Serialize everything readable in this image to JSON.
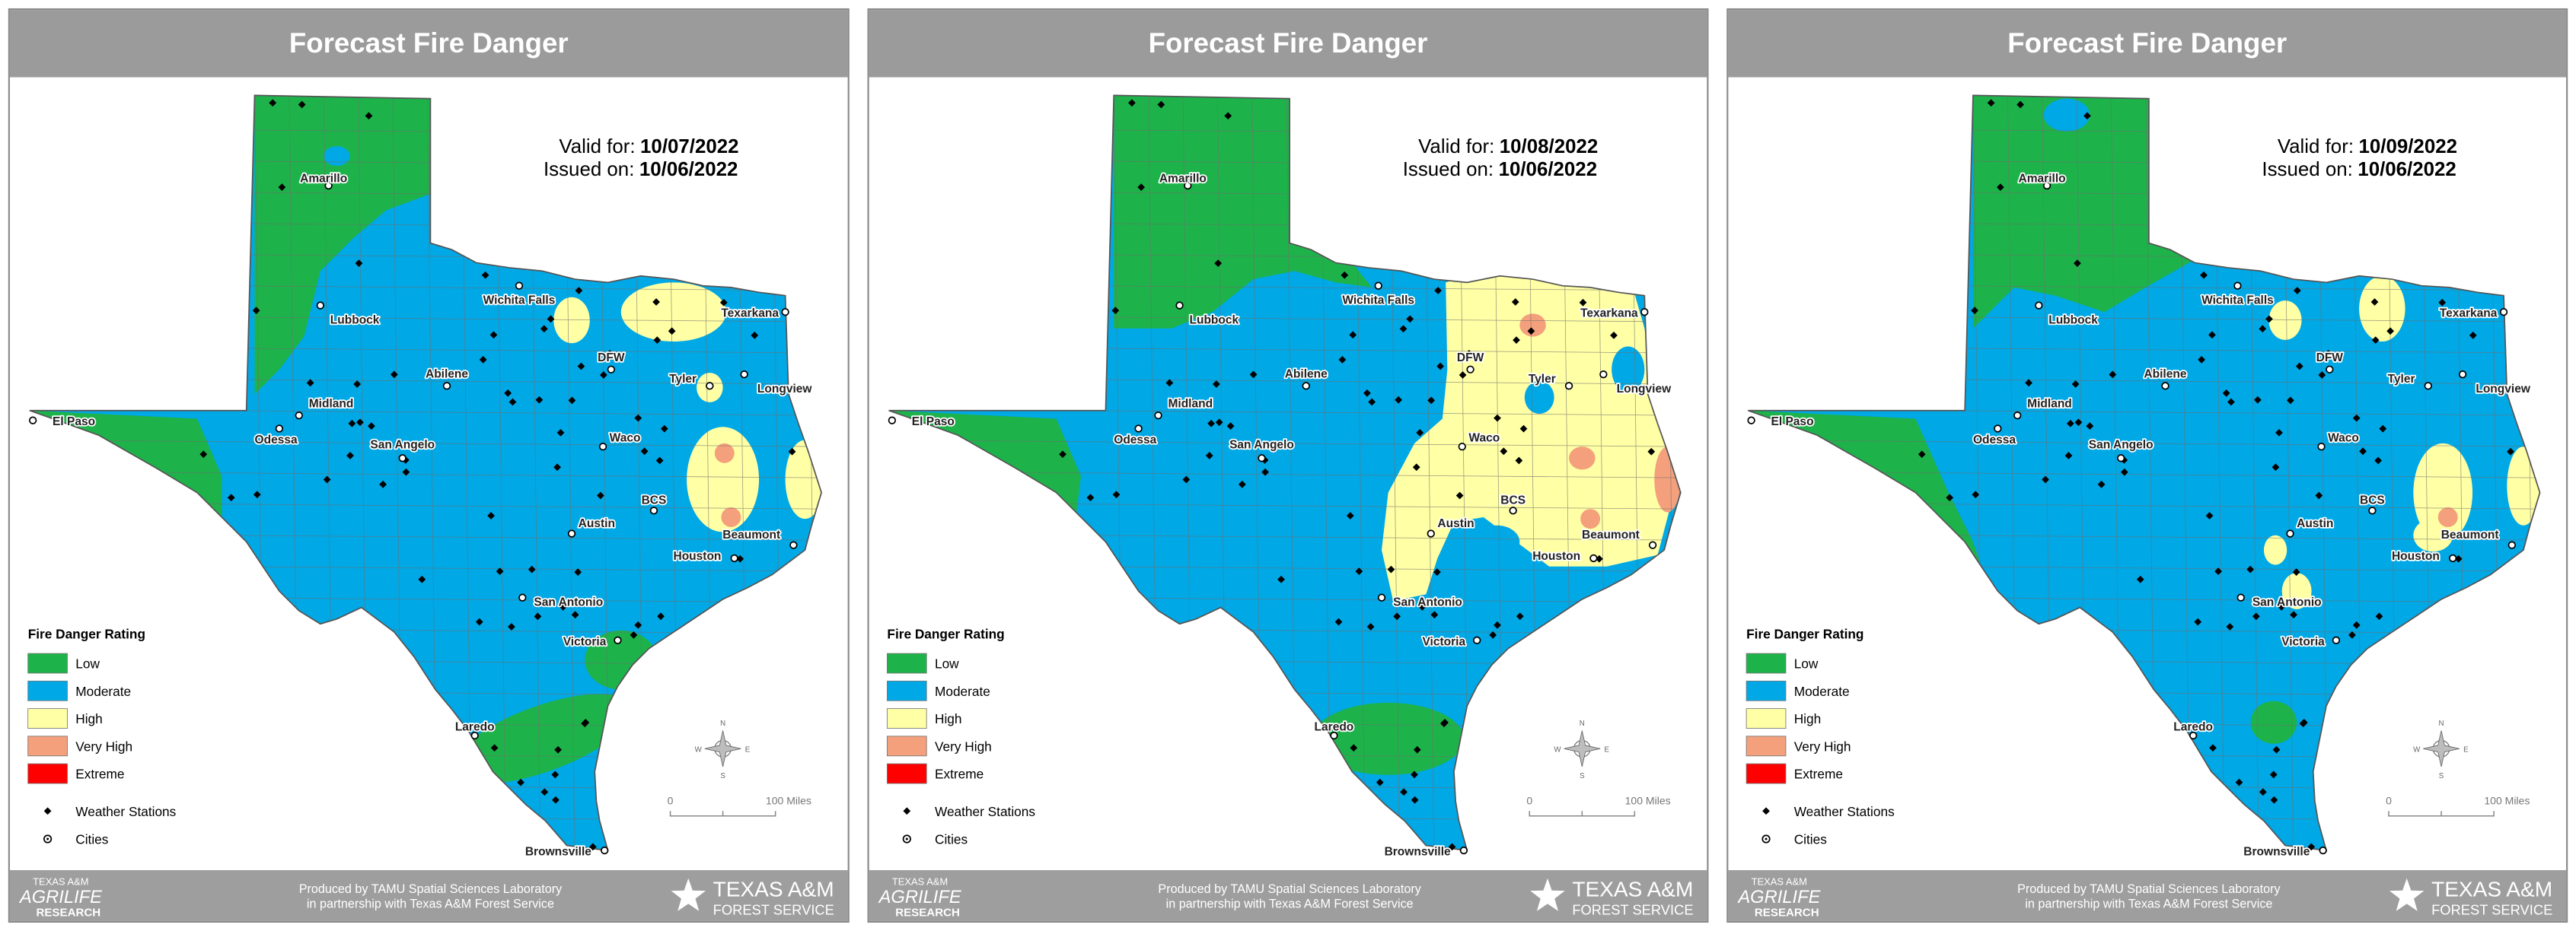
{
  "panels": [
    {
      "title": "Forecast Fire Danger",
      "valid_label": "Valid for:",
      "valid_date": "10/07/2022",
      "issued_label": "Issued on:",
      "issued_date": "10/06/2022"
    },
    {
      "title": "Forecast Fire Danger",
      "valid_label": "Valid for:",
      "valid_date": "10/08/2022",
      "issued_label": "Issued on:",
      "issued_date": "10/06/2022"
    },
    {
      "title": "Forecast Fire Danger",
      "valid_label": "Valid for:",
      "valid_date": "10/09/2022",
      "issued_label": "Issued on:",
      "issued_date": "10/06/2022"
    }
  ],
  "legend": {
    "title": "Fire Danger Rating",
    "items": [
      {
        "label": "Low",
        "color": "#1db34a"
      },
      {
        "label": "Moderate",
        "color": "#00a8e6"
      },
      {
        "label": "High",
        "color": "#ffffa5"
      },
      {
        "label": "Very High",
        "color": "#f4a07c"
      },
      {
        "label": "Extreme",
        "color": "#ff0000"
      }
    ],
    "stations": "Weather Stations",
    "cities": "Cities"
  },
  "cities": [
    "Amarillo",
    "Lubbock",
    "Wichita Falls",
    "Texarkana",
    "DFW",
    "Tyler",
    "Longview",
    "El Paso",
    "Midland",
    "Abilene",
    "Odessa",
    "San Angelo",
    "Waco",
    "BCS",
    "Austin",
    "Beaumont",
    "Houston",
    "San Antonio",
    "Victoria",
    "Laredo",
    "Brownsville"
  ],
  "scale": {
    "start": "0",
    "end": "100 Miles"
  },
  "compass": [
    "N",
    "E",
    "S",
    "W"
  ],
  "footer": {
    "left_top": "TEXAS A&M",
    "left_main": "AGRILIFE",
    "left_bottom": "RESEARCH",
    "credit_line1": "Produced by TAMU Spatial Sciences Laboratory",
    "credit_line2": "in partnership with Texas A&M Forest Service",
    "right_top": "TEXAS A&M",
    "right_bottom": "FOREST SERVICE"
  }
}
